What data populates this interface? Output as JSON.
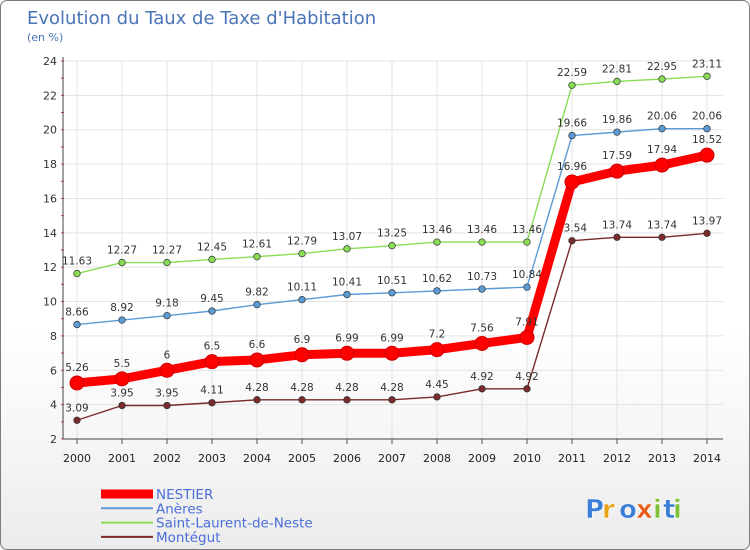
{
  "chart_data": {
    "type": "line",
    "title": "Evolution du Taux de Taxe d'Habitation",
    "subtitle": "(en %)",
    "x": [
      "2000",
      "2001",
      "2002",
      "2003",
      "2004",
      "2005",
      "2006",
      "2007",
      "2008",
      "2009",
      "2010",
      "2011",
      "2012",
      "2013",
      "2014"
    ],
    "ylim": [
      2,
      24
    ],
    "yticks": [
      "2",
      "4",
      "6",
      "8",
      "10",
      "12",
      "14",
      "16",
      "18",
      "20",
      "22",
      "24"
    ],
    "grid": true,
    "legend_position": "bottom-left",
    "series": [
      {
        "name": "NESTIER",
        "color": "#ff0000",
        "values": [
          5.26,
          5.5,
          6,
          6.5,
          6.6,
          6.9,
          6.99,
          6.99,
          7.2,
          7.56,
          7.91,
          16.96,
          17.59,
          17.94,
          18.52
        ],
        "labels": [
          "5.26",
          "5.5",
          "6",
          "6.5",
          "6.6",
          "6.9",
          "6.99",
          "6.99",
          "7.2",
          "7.56",
          "7.91",
          "16.96",
          "17.59",
          "17.94",
          "18.52"
        ]
      },
      {
        "name": "Anères",
        "color": "#5b9bd5",
        "values": [
          8.66,
          8.92,
          9.18,
          9.45,
          9.82,
          10.11,
          10.41,
          10.51,
          10.62,
          10.73,
          10.84,
          19.66,
          19.86,
          20.06,
          20.06
        ],
        "labels": [
          "8.66",
          "8.92",
          "9.18",
          "9.45",
          "9.82",
          "10.11",
          "10.41",
          "10.51",
          "10.62",
          "10.73",
          "10.84",
          "19.66",
          "19.86",
          "20.06",
          "20.06"
        ]
      },
      {
        "name": "Saint-Laurent-de-Neste",
        "color": "#88dd55",
        "values": [
          11.63,
          12.27,
          12.27,
          12.45,
          12.61,
          12.79,
          13.07,
          13.25,
          13.46,
          13.46,
          13.46,
          22.59,
          22.81,
          22.95,
          23.11
        ],
        "labels": [
          "11.63",
          "12.27",
          "12.27",
          "12.45",
          "12.61",
          "12.79",
          "13.07",
          "13.25",
          "13.46",
          "13.46",
          "13.46",
          "22.59",
          "22.81",
          "22.95",
          "23.11"
        ]
      },
      {
        "name": "Montégut",
        "color": "#7a2a2a",
        "values": [
          3.09,
          3.95,
          3.95,
          4.11,
          4.28,
          4.28,
          4.28,
          4.28,
          4.45,
          4.92,
          4.92,
          13.54,
          13.74,
          13.74,
          13.97
        ],
        "labels": [
          "3.09",
          "3.95",
          "3.95",
          "4.11",
          "4.28",
          "4.28",
          "4.28",
          "4.28",
          "4.45",
          "4.92",
          "4.92",
          "13.54",
          "13.74",
          "13.74",
          "13.97"
        ]
      }
    ]
  },
  "logo": {
    "text": "Proxiti"
  }
}
